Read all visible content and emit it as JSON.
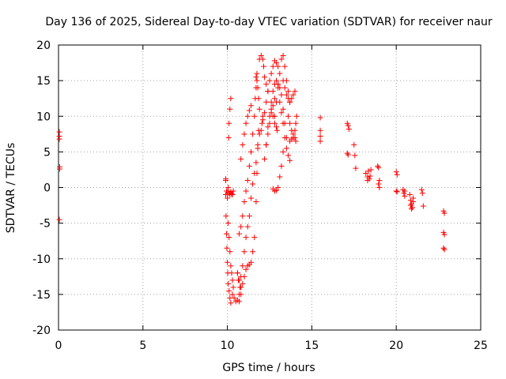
{
  "chart_data": {
    "type": "scatter",
    "title": "Day 136 of 2025, Sidereal Day-to-day VTEC variation (SDTVAR) for receiver naur",
    "xlabel": "GPS time / hours",
    "ylabel": "SDTVAR / TECUs",
    "xlim": [
      0,
      25
    ],
    "ylim": [
      -20,
      20
    ],
    "xticks": [
      0,
      5,
      10,
      15,
      20,
      25
    ],
    "yticks": [
      -20,
      -15,
      -10,
      -5,
      0,
      5,
      10,
      15,
      20
    ],
    "grid": true,
    "marker": "plus",
    "color": "#ff0000",
    "segments": [
      {
        "name": "early-a",
        "x": [
          0.05,
          0.05,
          0.05
        ],
        "y": [
          7.8,
          7.2,
          6.8
        ]
      },
      {
        "name": "early-b",
        "x": [
          0.07,
          0.07
        ],
        "y": [
          2.9,
          2.6
        ]
      },
      {
        "name": "early-c",
        "x": [
          0.05
        ],
        "y": [
          -4.5
        ]
      },
      {
        "name": "arc-10-left",
        "x": [
          9.9,
          9.9,
          9.92,
          9.95,
          9.97,
          10.0,
          10.02,
          10.05,
          10.1,
          10.15,
          10.2
        ],
        "y": [
          1.2,
          -1.0,
          -4.0,
          -6.5,
          -8.5,
          -10.5,
          -12.0,
          -13.5,
          -14.5,
          -15.5,
          -16.2
        ]
      },
      {
        "name": "arc-10-inner",
        "x": [
          9.9,
          9.95,
          10.0,
          10.05,
          10.1,
          10.15,
          10.2,
          10.25,
          10.3,
          10.35
        ],
        "y": [
          1.0,
          -0.5,
          -1.5,
          -5.0,
          -7.0,
          -9.0,
          -11.0,
          -12.0,
          -13.0,
          -14.0
        ]
      },
      {
        "name": "arc-10-rise",
        "x": [
          10.0,
          10.02,
          10.05,
          10.08,
          10.1,
          10.15,
          10.2
        ],
        "y": [
          -1.0,
          -0.5,
          0.0,
          7.0,
          9.0,
          11.0,
          12.5
        ]
      },
      {
        "name": "arc-10-flat",
        "x": [
          10.1,
          10.15,
          10.2,
          10.25,
          10.3,
          10.35
        ],
        "y": [
          -0.8,
          -1.0,
          -0.6,
          -0.9,
          -1.0,
          -0.5
        ]
      },
      {
        "name": "arc-10-bottom",
        "x": [
          10.3,
          10.4,
          10.5,
          10.6,
          10.7,
          10.8
        ],
        "y": [
          -15.0,
          -15.5,
          -16.0,
          -15.8,
          -16.0,
          -15.0
        ]
      },
      {
        "name": "arc-11-left",
        "x": [
          10.6,
          10.65,
          10.7,
          10.75,
          10.8,
          10.9,
          11.0,
          11.1,
          11.2,
          11.3,
          11.4,
          11.5,
          11.6,
          11.7,
          11.8,
          11.9,
          12.0,
          12.05,
          12.1
        ],
        "y": [
          -12.0,
          -13.0,
          -15.0,
          -14.0,
          -12.5,
          -11.0,
          -9.0,
          -7.0,
          -5.5,
          -4.0,
          -1.5,
          0.5,
          2.0,
          3.5,
          5.5,
          7.5,
          8.0,
          9.0,
          10.0
        ]
      },
      {
        "name": "arc-11-right",
        "x": [
          10.6,
          10.7,
          10.8,
          10.9,
          11.0,
          11.1,
          11.2,
          11.3,
          11.4,
          11.5,
          11.6,
          11.7,
          11.75,
          11.8,
          11.85
        ],
        "y": [
          -12.0,
          -13.0,
          -14.0,
          -13.5,
          -12.5,
          -11.5,
          -11.0,
          -10.8,
          -10.5,
          -9.0,
          -7.0,
          -2.0,
          2.0,
          6.0,
          8.0
        ]
      },
      {
        "name": "arc-11-mid",
        "x": [
          10.7,
          10.8,
          10.9,
          11.0,
          11.1,
          11.2,
          11.3,
          11.4,
          11.5,
          11.6,
          11.65,
          11.7,
          11.75
        ],
        "y": [
          -6.5,
          -5.5,
          -4.0,
          -2.0,
          -0.5,
          1.0,
          3.0,
          5.0,
          7.5,
          10.0,
          12.5,
          14.0,
          16.0
        ]
      },
      {
        "name": "arc-11-a",
        "x": [
          10.8,
          10.9,
          11.0,
          11.1,
          11.2,
          11.3,
          11.4
        ],
        "y": [
          4.0,
          6.0,
          7.5,
          9.0,
          10.0,
          10.8,
          11.5
        ]
      },
      {
        "name": "arc-11-b",
        "x": [
          11.7,
          11.75,
          11.8,
          11.85,
          11.9
        ],
        "y": [
          15.5,
          15.0,
          14.0,
          12.5,
          11.0
        ]
      },
      {
        "name": "arc-12-a",
        "x": [
          11.9,
          12.0,
          12.1,
          12.15,
          12.2,
          12.3,
          12.4
        ],
        "y": [
          18.0,
          18.5,
          18.0,
          17.0,
          15.5,
          14.5,
          13.5
        ]
      },
      {
        "name": "arc-12-b",
        "x": [
          12.1,
          12.2,
          12.3,
          12.4,
          12.5,
          12.6,
          12.7,
          12.8,
          12.9,
          13.0
        ],
        "y": [
          9.5,
          10.5,
          12.0,
          13.5,
          15.0,
          16.0,
          17.0,
          17.8,
          17.5,
          17.0
        ]
      },
      {
        "name": "arc-12-c",
        "x": [
          12.2,
          12.3,
          12.4,
          12.5,
          12.6,
          12.7,
          12.8,
          12.9,
          13.0
        ],
        "y": [
          4.0,
          6.0,
          8.5,
          10.0,
          12.0,
          13.5,
          14.5,
          15.0,
          14.5
        ]
      },
      {
        "name": "arc-12-d",
        "x": [
          12.3,
          12.4,
          12.5,
          12.6,
          12.7,
          12.8
        ],
        "y": [
          6.0,
          7.5,
          9.0,
          10.5,
          11.5,
          12.5
        ]
      },
      {
        "name": "arc-12-e",
        "x": [
          12.6,
          12.7,
          12.8,
          12.9,
          12.95
        ],
        "y": [
          11.0,
          10.0,
          9.0,
          8.5,
          8.0
        ]
      },
      {
        "name": "arc-13-a",
        "x": [
          12.7,
          12.8,
          12.9,
          13.0,
          13.1,
          13.2,
          13.3
        ],
        "y": [
          -0.2,
          -0.5,
          -0.4,
          0.0,
          1.5,
          3.0,
          5.0
        ]
      },
      {
        "name": "arc-13-b",
        "x": [
          12.8,
          12.9,
          13.0,
          13.1,
          13.2,
          13.3,
          13.4,
          13.5,
          13.6,
          13.7
        ],
        "y": [
          10.0,
          12.0,
          14.0,
          16.0,
          18.0,
          18.5,
          17.0,
          15.0,
          13.5,
          12.0
        ]
      },
      {
        "name": "arc-13-c",
        "x": [
          13.0,
          13.1,
          13.2,
          13.3,
          13.4,
          13.5
        ],
        "y": [
          14.5,
          14.0,
          13.0,
          11.0,
          9.0,
          7.0
        ]
      },
      {
        "name": "arc-13-d",
        "x": [
          13.1,
          13.2,
          13.3,
          13.4,
          13.5,
          13.6,
          13.7
        ],
        "y": [
          12.0,
          10.5,
          9.0,
          7.0,
          5.5,
          4.5,
          3.8
        ]
      },
      {
        "name": "arc-13-e",
        "x": [
          13.3,
          13.4,
          13.5,
          13.6,
          13.7,
          13.8,
          13.9,
          14.0
        ],
        "y": [
          15.0,
          14.0,
          13.0,
          12.5,
          12.0,
          12.5,
          13.0,
          13.5
        ]
      },
      {
        "name": "arc-14",
        "x": [
          13.6,
          13.7,
          13.8,
          13.9,
          14.0,
          14.05,
          14.1
        ],
        "y": [
          10.0,
          9.0,
          8.0,
          7.5,
          7.0,
          6.5,
          10.0
        ]
      },
      {
        "name": "arc-14-b",
        "x": [
          13.7,
          13.8,
          13.9,
          14.0,
          14.05
        ],
        "y": [
          6.5,
          6.8,
          7.0,
          8.0,
          9.0
        ]
      },
      {
        "name": "late-15",
        "x": [
          15.5,
          15.5,
          15.5,
          15.5
        ],
        "y": [
          9.8,
          8.0,
          7.2,
          6.5
        ]
      },
      {
        "name": "late-17",
        "x": [
          17.1,
          17.15,
          17.2,
          17.1,
          17.15
        ],
        "y": [
          9.0,
          8.7,
          8.2,
          4.8,
          4.6
        ]
      },
      {
        "name": "late-17-b",
        "x": [
          17.5,
          17.55,
          17.6
        ],
        "y": [
          6.0,
          4.5,
          2.7
        ]
      },
      {
        "name": "late-18",
        "x": [
          18.2,
          18.3,
          18.35,
          18.4,
          18.5,
          18.3,
          18.45
        ],
        "y": [
          2.0,
          1.5,
          2.3,
          1.2,
          2.5,
          1.0,
          1.6
        ]
      },
      {
        "name": "late-19",
        "x": [
          18.9,
          18.95,
          19.0,
          18.95,
          19.0
        ],
        "y": [
          3.0,
          2.8,
          1.0,
          0.5,
          0.0
        ]
      },
      {
        "name": "late-20",
        "x": [
          20.0,
          20.05,
          20.0,
          20.05
        ],
        "y": [
          2.2,
          1.8,
          -0.5,
          -0.6
        ]
      },
      {
        "name": "late-20-b",
        "x": [
          20.4,
          20.45,
          20.5,
          20.5
        ],
        "y": [
          -0.3,
          -0.8,
          -0.5,
          -1.2
        ]
      },
      {
        "name": "late-21",
        "x": [
          20.8,
          20.85,
          20.9,
          20.95,
          21.0,
          21.0,
          20.9,
          20.85
        ],
        "y": [
          -1.0,
          -1.8,
          -2.3,
          -2.8,
          -2.0,
          -1.5,
          -3.0,
          -2.5
        ]
      },
      {
        "name": "late-21-b",
        "x": [
          21.5,
          21.55,
          21.6
        ],
        "y": [
          -0.3,
          -0.8,
          -2.6
        ]
      },
      {
        "name": "late-23",
        "x": [
          22.8,
          22.85,
          22.8,
          22.85,
          22.8,
          22.85
        ],
        "y": [
          -3.3,
          -3.6,
          -6.3,
          -6.6,
          -8.5,
          -8.7
        ]
      }
    ]
  }
}
